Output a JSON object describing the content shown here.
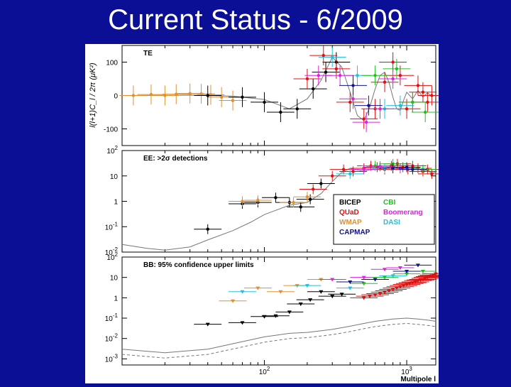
{
  "slide": {
    "title": "Current Status - 6/2009"
  },
  "figure": {
    "ylabel": "l(l+1)C_l / 2π  (μK²)",
    "xlabel": "Multipole l"
  },
  "colors": {
    "BICEP": "#000000",
    "QUaD": "#e01010",
    "WMAP": "#e09030",
    "CAPMAP": "#101090",
    "CBI": "#20c020",
    "Boomerang": "#e020e0",
    "DASI": "#20c0e0",
    "model": "#777777"
  },
  "legend": {
    "entries": [
      {
        "name": "BICEP",
        "color": "#000000"
      },
      {
        "name": "QUaD",
        "color": "#e01010"
      },
      {
        "name": "WMAP",
        "color": "#e09030"
      },
      {
        "name": "CAPMAP",
        "color": "#101090"
      },
      {
        "name": "CBI",
        "color": "#20c020"
      },
      {
        "name": "Boomerang",
        "color": "#e020e0"
      },
      {
        "name": "DASI",
        "color": "#20c0e0"
      }
    ]
  },
  "chart_data": [
    {
      "type": "scatter",
      "panel": "TE",
      "title": "TE",
      "xscale": "log",
      "xlim": [
        10,
        1600
      ],
      "ylim": [
        -150,
        150
      ],
      "yticks": [
        -100,
        0,
        100
      ],
      "ytick_labels": [
        "-100",
        "0",
        "100"
      ],
      "series": [
        {
          "name": "WMAP",
          "x": [
            12,
            16,
            20,
            24,
            30,
            36,
            42,
            50,
            60
          ],
          "y": [
            0,
            3,
            0,
            4,
            6,
            5,
            2,
            -5,
            -15
          ]
        },
        {
          "name": "BICEP",
          "x": [
            40,
            70,
            100,
            130,
            170,
            220,
            270,
            320
          ],
          "y": [
            0,
            -5,
            -20,
            -50,
            -40,
            20,
            70,
            100
          ]
        },
        {
          "name": "QUaD",
          "x": [
            200,
            260,
            320,
            400,
            500,
            600,
            700,
            800,
            900,
            1000,
            1100,
            1200,
            1300,
            1400,
            1500
          ],
          "y": [
            50,
            120,
            80,
            -20,
            -70,
            -40,
            40,
            100,
            60,
            -40,
            -20,
            30,
            10,
            -20,
            0
          ]
        },
        {
          "name": "DASI",
          "x": [
            300,
            450,
            700,
            900
          ],
          "y": [
            115,
            60,
            -40,
            -30
          ]
        },
        {
          "name": "CBI",
          "x": [
            600,
            850,
            1100,
            1350
          ],
          "y": [
            60,
            80,
            -20,
            -50
          ]
        },
        {
          "name": "Boomerang",
          "x": [
            240,
            340,
            420,
            520,
            650,
            800
          ],
          "y": [
            60,
            60,
            -10,
            -80,
            -40,
            50
          ]
        },
        {
          "name": "CAPMAP",
          "x": [
            420,
            540
          ],
          "y": [
            30,
            -30
          ]
        }
      ],
      "model_curve": {
        "x": [
          10,
          30,
          60,
          100,
          150,
          200,
          250,
          300,
          350,
          400,
          450,
          500,
          550,
          600,
          650,
          700,
          750,
          800,
          850,
          900,
          950,
          1000,
          1100,
          1200,
          1300,
          1400,
          1500,
          1600
        ],
        "y": [
          0,
          1,
          -2,
          -12,
          -40,
          -10,
          45,
          115,
          85,
          10,
          -60,
          -75,
          -35,
          20,
          60,
          70,
          40,
          -5,
          -40,
          -45,
          -15,
          10,
          -10,
          15,
          -5,
          8,
          -3,
          2
        ]
      }
    },
    {
      "type": "scatter",
      "panel": "EE",
      "title": "EE: >2σ detections",
      "xscale": "log",
      "yscale": "log",
      "xlim": [
        10,
        1600
      ],
      "ylim": [
        0.01,
        100
      ],
      "yticks": [
        0.01,
        0.1,
        1,
        10,
        100
      ],
      "ytick_labels": [
        "10^-2",
        "10^-1",
        "1",
        "10",
        "10^2"
      ],
      "series": [
        {
          "name": "BICEP",
          "x": [
            40,
            70,
            90,
            120,
            150,
            180,
            210,
            250
          ],
          "y": [
            0.08,
            0.8,
            0.9,
            1.4,
            0.9,
            0.6,
            1.2,
            5
          ]
        },
        {
          "name": "WMAP",
          "x": [
            70,
            90,
            160,
            200
          ],
          "y": [
            1.0,
            1.1,
            0.9,
            1.5
          ]
        },
        {
          "name": "QUaD",
          "x": [
            220,
            300,
            360,
            420,
            500,
            560,
            620,
            700,
            780,
            860,
            940,
            1020,
            1100,
            1200,
            1300,
            1400,
            1500
          ],
          "y": [
            3,
            10,
            18,
            15,
            20,
            25,
            22,
            18,
            25,
            30,
            22,
            18,
            25,
            20,
            15,
            18,
            12
          ]
        },
        {
          "name": "CBI",
          "x": [
            600,
            800,
            1100,
            1300
          ],
          "y": [
            25,
            30,
            20,
            18
          ]
        },
        {
          "name": "Boomerang",
          "x": [
            500,
            650,
            900
          ],
          "y": [
            18,
            24,
            20
          ]
        },
        {
          "name": "DASI",
          "x": [
            400,
            700
          ],
          "y": [
            12,
            20
          ]
        },
        {
          "name": "CAPMAP",
          "x": [
            800,
            1000,
            1100
          ],
          "y": [
            20,
            22,
            18
          ]
        }
      ],
      "model_curve": {
        "x": [
          10,
          15,
          20,
          30,
          40,
          60,
          80,
          100,
          150,
          200,
          250,
          300,
          350,
          400,
          500,
          600,
          700,
          800,
          900,
          1000,
          1100,
          1200,
          1300,
          1400,
          1500,
          1600
        ],
        "y": [
          0.02,
          0.014,
          0.012,
          0.016,
          0.03,
          0.07,
          0.15,
          0.3,
          0.7,
          0.9,
          2,
          6,
          14,
          20,
          15,
          20,
          18,
          25,
          18,
          22,
          18,
          20,
          15,
          18,
          12,
          15
        ]
      }
    },
    {
      "type": "scatter",
      "panel": "BB",
      "title": "BB: 95% confidence upper limits",
      "xscale": "log",
      "yscale": "log",
      "xlim": [
        10,
        1600
      ],
      "ylim": [
        0.0005,
        100
      ],
      "xticks": [
        100,
        1000
      ],
      "xtick_labels": [
        "10^2",
        "10^3"
      ],
      "yticks": [
        0.001,
        0.01,
        0.1,
        1,
        10,
        100
      ],
      "ytick_labels": [
        "10^-3",
        "10^-2",
        "10^-1",
        "1",
        "10",
        "10^2"
      ],
      "series": [
        {
          "name": "BICEP",
          "x": [
            40,
            70,
            100,
            120,
            150,
            180,
            210,
            250,
            300,
            350
          ],
          "y": [
            0.05,
            0.06,
            0.12,
            0.13,
            0.2,
            0.5,
            0.8,
            2,
            1.2,
            1.5
          ]
        },
        {
          "name": "WMAP",
          "x": [
            60,
            90,
            130,
            170,
            250
          ],
          "y": [
            0.7,
            3,
            2,
            4,
            8
          ]
        },
        {
          "name": "DASI",
          "x": [
            70,
            200,
            400,
            800
          ],
          "y": [
            2,
            4,
            3,
            12
          ]
        },
        {
          "name": "Boomerang",
          "x": [
            300,
            500,
            700,
            900
          ],
          "y": [
            8,
            10,
            25,
            30
          ]
        },
        {
          "name": "QUaD",
          "x": [
            500,
            550,
            600,
            650,
            700,
            750,
            800,
            850,
            900,
            950,
            1000,
            1050,
            1100,
            1150,
            1200,
            1250,
            1300,
            1350,
            1400,
            1450,
            1500,
            1550,
            1600
          ],
          "y": [
            1,
            1.2,
            1.4,
            1.6,
            1.9,
            2.2,
            2.6,
            3,
            3.5,
            4,
            4.5,
            5,
            5.5,
            6,
            7,
            7.5,
            8,
            9,
            10,
            11,
            12,
            13,
            15
          ]
        },
        {
          "name": "CBI",
          "x": [
            500,
            700,
            1000,
            1300
          ],
          "y": [
            5,
            10,
            15,
            20
          ]
        },
        {
          "name": "CAPMAP",
          "x": [
            400,
            600,
            1000,
            1200
          ],
          "y": [
            6,
            8,
            20,
            40
          ]
        }
      ],
      "model_curve": {
        "x": [
          10,
          20,
          40,
          70,
          100,
          150,
          200,
          300,
          400,
          500,
          600,
          800,
          1000,
          1200,
          1400,
          1600
        ],
        "y": [
          0.003,
          0.002,
          0.003,
          0.007,
          0.012,
          0.018,
          0.02,
          0.028,
          0.04,
          0.055,
          0.07,
          0.09,
          0.1,
          0.09,
          0.08,
          0.07
        ]
      }
    }
  ]
}
